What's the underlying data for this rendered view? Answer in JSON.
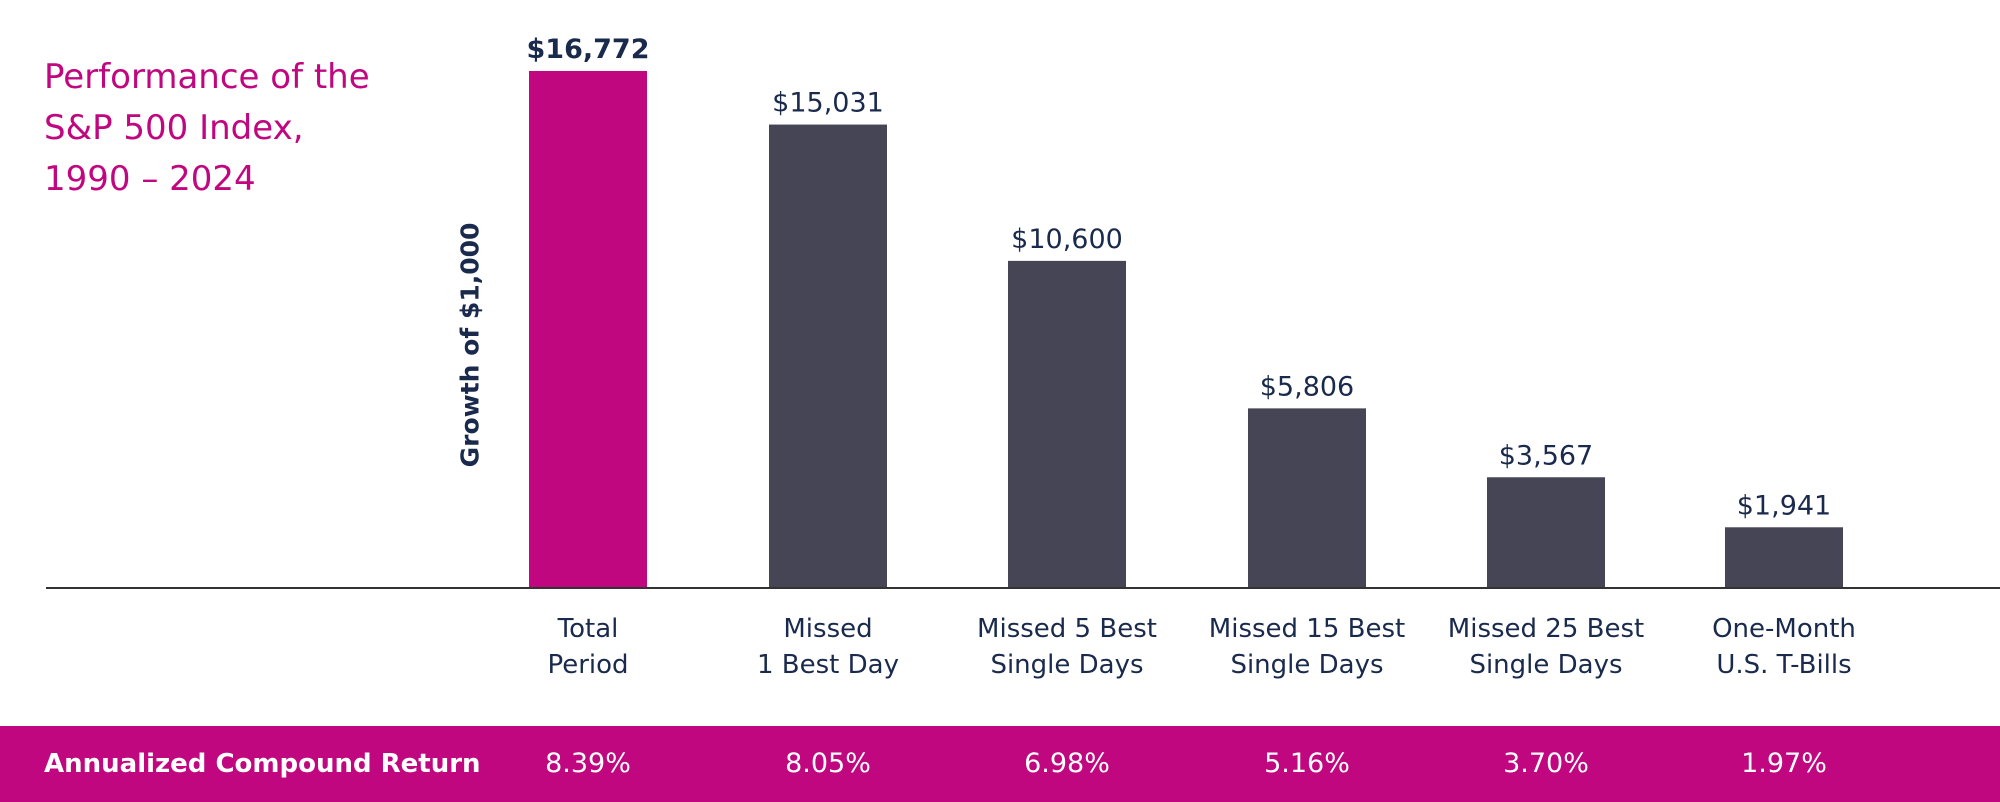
{
  "title_lines": [
    "Performance  of the",
    "S&P 500 Index,",
    "1990 – 2024"
  ],
  "chart_data": {
    "type": "bar",
    "title": "Performance of the S&P 500 Index, 1990 – 2024",
    "ylabel": "Growth  of $1,000",
    "xlabel": "",
    "ylim": [
      0,
      16772
    ],
    "categories": [
      [
        "Total",
        "Period"
      ],
      [
        "Missed",
        "1 Best Day"
      ],
      [
        "Missed  5 Best",
        "Single  Days"
      ],
      [
        "Missed  15 Best",
        "Single  Days"
      ],
      [
        "Missed  25 Best",
        "Single  Days"
      ],
      [
        "One-Month",
        "U.S. T-Bills"
      ]
    ],
    "values": [
      16772,
      15031,
      10600,
      5806,
      3567,
      1941
    ],
    "value_labels": [
      "$16,772",
      "$15,031",
      "$10,600",
      "$5,806",
      "$3,567",
      "$1,941"
    ],
    "colors": [
      "#c0077f",
      "#454556",
      "#454556",
      "#454556",
      "#454556",
      "#454556"
    ],
    "grid": false
  },
  "returns": {
    "label": "Annualized  Compound  Return",
    "values": [
      "8.39%",
      "8.05%",
      "6.98%",
      "5.16%",
      "3.70%",
      "1.97%"
    ]
  },
  "colors": {
    "accent": "#c0077f",
    "bar": "#454556",
    "text": "#1a2a4d",
    "axis": "#333333"
  }
}
